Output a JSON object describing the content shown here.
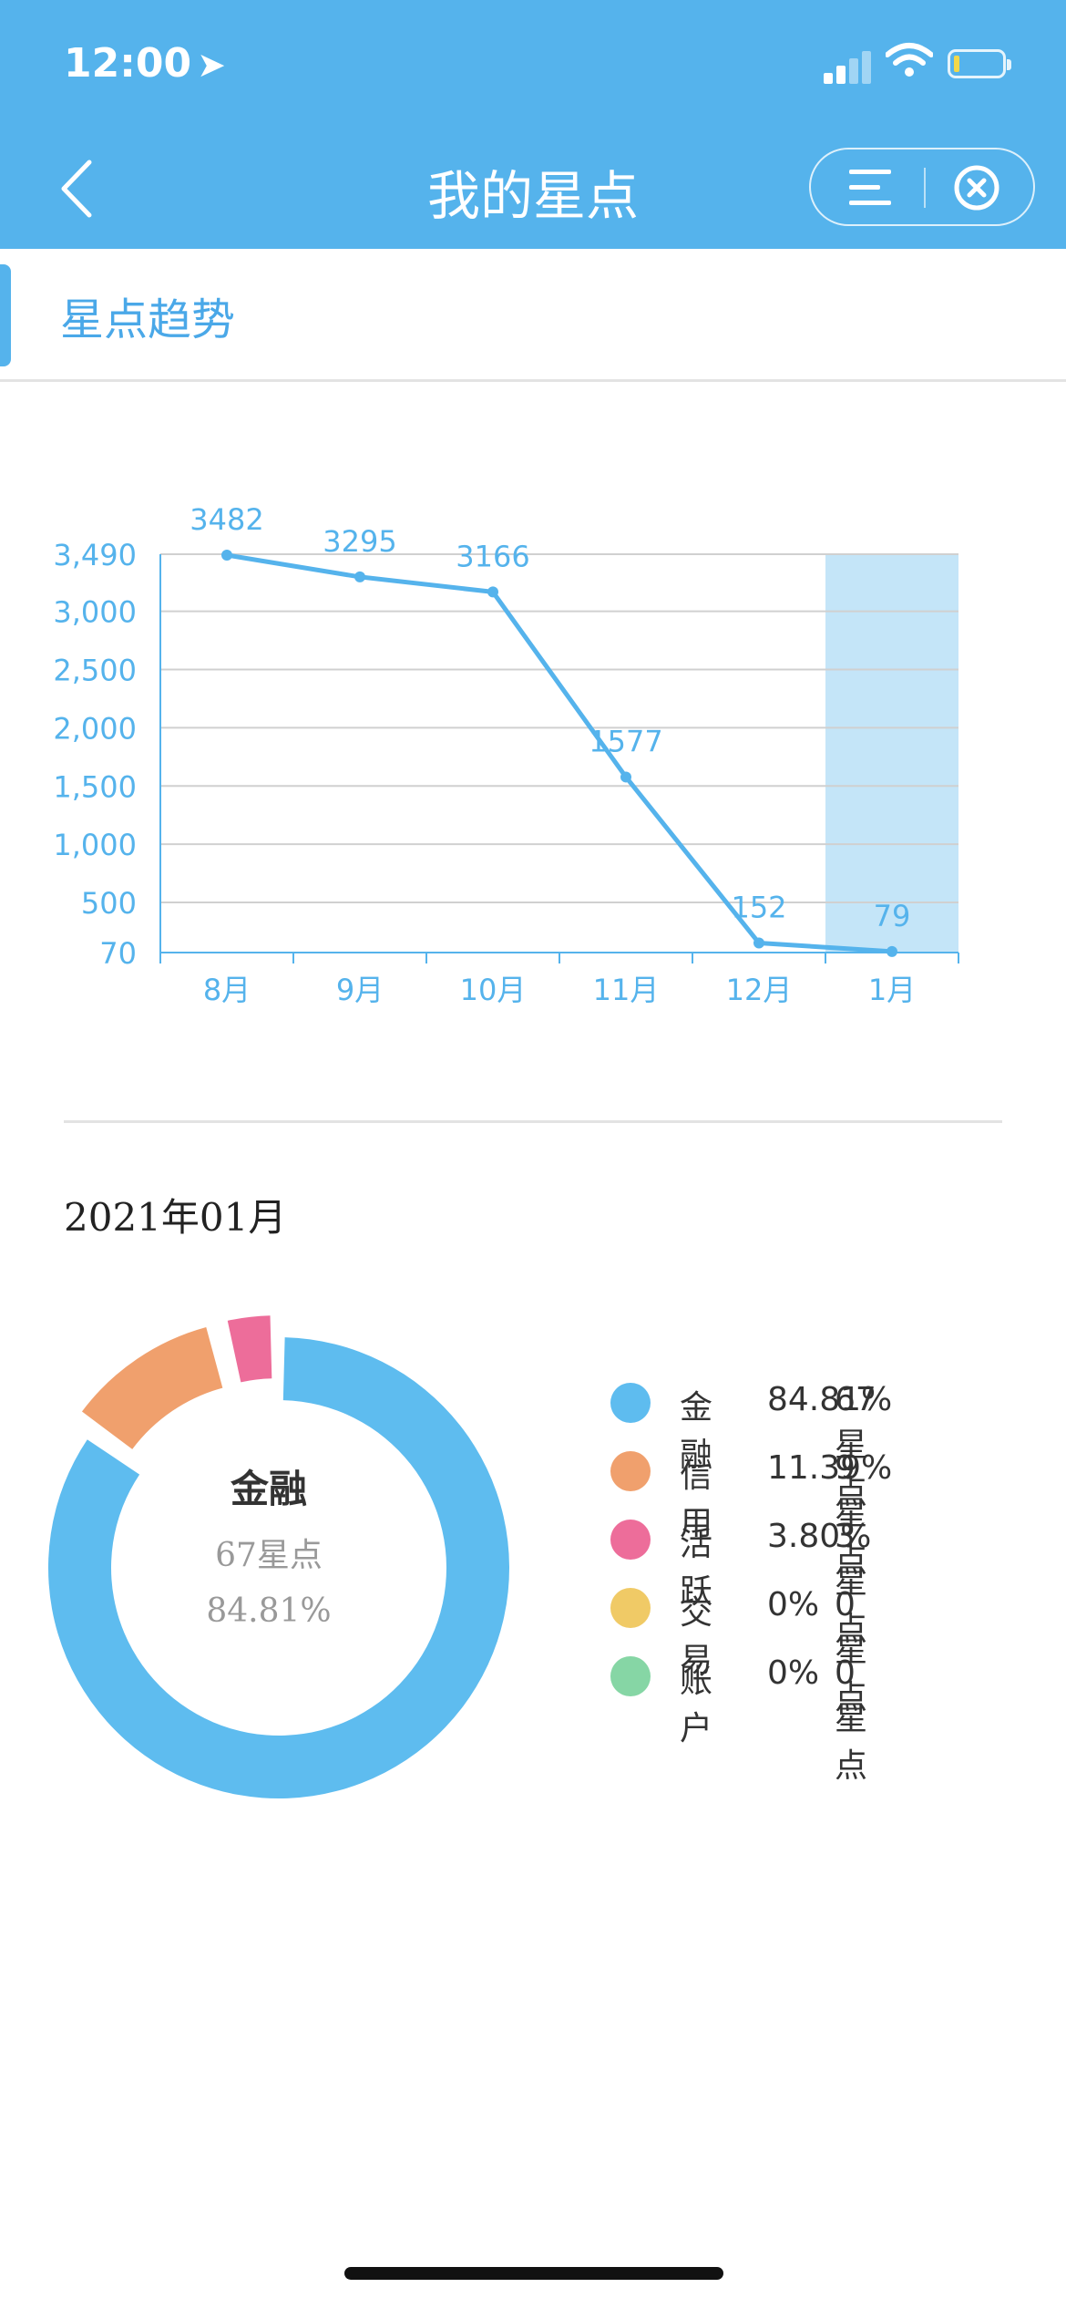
{
  "status_bar": {
    "time": "12:00",
    "location_icon": "location-arrow-icon"
  },
  "nav": {
    "title": "我的星点",
    "back_icon": "chevron-left-icon",
    "menu_icon": "menu-icon",
    "close_icon": "close-circle-icon"
  },
  "section": {
    "title": "星点趋势"
  },
  "chart_data": [
    {
      "type": "line",
      "categories": [
        "8月",
        "9月",
        "10月",
        "11月",
        "12月",
        "1月"
      ],
      "values": [
        3482,
        3295,
        3166,
        1577,
        152,
        79
      ],
      "data_labels": [
        "3482",
        "3295",
        "3166",
        "1577",
        "152",
        "79"
      ],
      "y_ticks": [
        70,
        500,
        1000,
        1500,
        2000,
        2500,
        3000,
        3490
      ],
      "y_tick_labels": [
        "70",
        "500",
        "1,000",
        "1,500",
        "2,000",
        "2,500",
        "3,000",
        "3,490"
      ],
      "ylim": [
        70,
        3490
      ],
      "highlighted_category": "1月",
      "grid": true,
      "color": "#55b3ec"
    },
    {
      "type": "pie",
      "labels": [
        "金融",
        "信用",
        "活跃",
        "交易",
        "账户"
      ],
      "values": [
        84.81,
        11.39,
        3.8,
        0,
        0
      ],
      "colors": [
        "#5ebcef",
        "#f0a06d",
        "#ed6d9a",
        "#f0ca66",
        "#86d6a5"
      ],
      "selected": "金融"
    }
  ],
  "summary": {
    "month": "2021年01月",
    "center": {
      "name": "金融",
      "points": "67星点",
      "percent": "84.81%"
    }
  },
  "legend": [
    {
      "name": "金融",
      "percent": "84.81%",
      "points": "67星点",
      "color": "#5ebcef"
    },
    {
      "name": "信用",
      "percent": "11.39%",
      "points": "9星点",
      "color": "#f0a06d"
    },
    {
      "name": "活跃",
      "percent": "3.80%",
      "points": "3星点",
      "color": "#ed6d9a"
    },
    {
      "name": "交易",
      "percent": "0%",
      "points": "0星点",
      "color": "#f0ca66"
    },
    {
      "name": "账户",
      "percent": "0%",
      "points": "0星点",
      "color": "#86d6a5"
    }
  ]
}
